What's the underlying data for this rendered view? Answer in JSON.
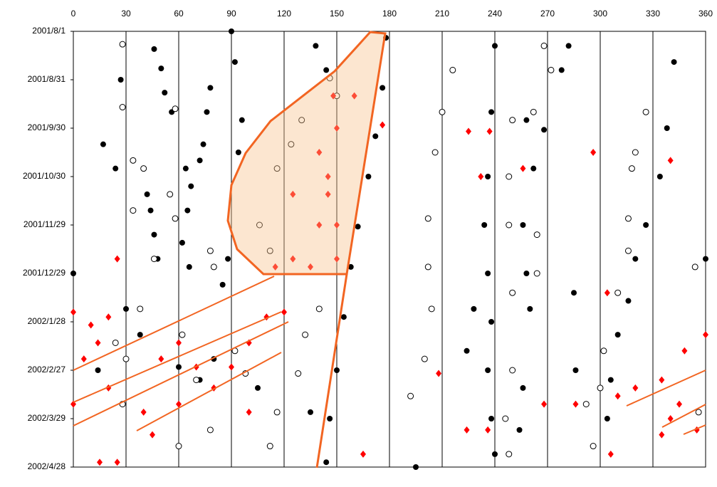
{
  "chart_data": {
    "type": "scatter",
    "xlim": [
      0,
      360
    ],
    "xticks": [
      0,
      30,
      60,
      90,
      120,
      150,
      180,
      210,
      240,
      270,
      300,
      330,
      360
    ],
    "ylim": [
      "2001/8/1",
      "2002/4/28"
    ],
    "yticks": [
      "2001/8/1",
      "2001/8/31",
      "2001/9/30",
      "2001/10/30",
      "2001/11/29",
      "2001/12/29",
      "2002/1/28",
      "2002/2/27",
      "2002/3/29",
      "2002/4/28"
    ],
    "grid": true,
    "series": [
      {
        "color": "#000000",
        "marker": "filled-circle",
        "x": [
          27,
          24,
          17,
          46,
          50,
          52,
          56,
          42,
          44,
          46,
          48,
          64,
          67,
          65,
          62,
          66,
          78,
          76,
          74,
          72,
          90,
          92,
          96,
          94,
          88,
          138,
          144,
          178,
          176,
          172,
          168,
          162,
          158,
          154,
          150,
          146,
          144,
          240,
          238,
          236,
          234,
          236,
          238,
          236,
          238,
          240,
          228,
          224,
          258,
          262,
          256,
          258,
          260,
          256,
          254,
          282,
          278,
          268,
          342,
          338,
          334,
          326,
          320,
          316,
          310,
          306,
          304,
          286,
          285,
          360,
          195,
          0,
          14,
          135,
          105,
          85,
          80,
          72,
          60,
          38,
          30
        ],
        "y": [
          "2001/8/31",
          "2001/10/25",
          "2001/10/10",
          "2001/8/12",
          "2001/8/24",
          "2001/9/8",
          "2001/9/20",
          "2001/11/10",
          "2001/11/20",
          "2001/12/5",
          "2001/12/20",
          "2001/10/25",
          "2001/11/5",
          "2001/11/20",
          "2001/12/10",
          "2001/12/25",
          "2001/9/5",
          "2001/9/20",
          "2001/10/10",
          "2001/10/20",
          "2001/8/1",
          "2001/8/20",
          "2001/9/25",
          "2001/10/15",
          "2001/12/20",
          "2001/8/10",
          "2001/8/25",
          "2001/8/5",
          "2001/9/5",
          "2001/10/5",
          "2001/10/30",
          "2001/11/30",
          "2001/12/25",
          "2002/1/25",
          "2002/2/27",
          "2002/3/29",
          "2002/4/25",
          "2001/8/10",
          "2001/9/20",
          "2001/10/30",
          "2001/11/29",
          "2001/12/29",
          "2002/1/28",
          "2002/2/27",
          "2002/3/29",
          "2002/4/20",
          "2002/1/20",
          "2002/2/15",
          "2001/9/25",
          "2001/10/25",
          "2001/11/29",
          "2001/12/29",
          "2002/1/20",
          "2002/3/10",
          "2002/4/5",
          "2001/8/10",
          "2001/8/25",
          "2001/10/1",
          "2001/8/20",
          "2001/9/30",
          "2001/10/30",
          "2001/11/29",
          "2001/12/20",
          "2002/1/15",
          "2002/2/5",
          "2002/3/5",
          "2002/3/29",
          "2002/2/27",
          "2002/1/10",
          "2001/12/20",
          "2002/4/28",
          "2001/12/29",
          "2002/2/27",
          "2002/3/25",
          "2002/3/10",
          "2002/1/5",
          "2002/2/20",
          "2002/3/5",
          "2002/2/25",
          "2002/2/5",
          "2002/1/20"
        ]
      },
      {
        "color": "#000000",
        "marker": "open-circle",
        "x": [
          28,
          28,
          34,
          34,
          40,
          58,
          55,
          58,
          46,
          78,
          80,
          24,
          30,
          28,
          38,
          62,
          70,
          60,
          78,
          92,
          98,
          116,
          112,
          132,
          128,
          106,
          112,
          116,
          124,
          130,
          146,
          150,
          140,
          210,
          206,
          202,
          202,
          204,
          200,
          192,
          216,
          250,
          248,
          248,
          250,
          250,
          246,
          248,
          262,
          268,
          272,
          264,
          264,
          296,
          292,
          300,
          302,
          310,
          316,
          318,
          320,
          326,
          316,
          354,
          356
        ],
        "y": [
          "2001/8/9",
          "2001/9/17",
          "2001/10/20",
          "2001/11/20",
          "2001/10/25",
          "2001/9/18",
          "2001/11/10",
          "2001/11/25",
          "2001/12/20",
          "2001/12/15",
          "2001/12/25",
          "2002/2/10",
          "2002/2/20",
          "2002/3/20",
          "2002/1/20",
          "2002/2/5",
          "2002/3/5",
          "2002/4/15",
          "2002/4/5",
          "2002/2/15",
          "2002/3/1",
          "2002/3/25",
          "2002/4/15",
          "2002/2/5",
          "2002/3/1",
          "2001/11/29",
          "2001/12/15",
          "2001/10/25",
          "2001/10/10",
          "2001/9/25",
          "2001/8/30",
          "2001/9/10",
          "2002/1/20",
          "2001/9/20",
          "2001/10/15",
          "2001/11/25",
          "2001/12/25",
          "2002/1/20",
          "2002/2/20",
          "2002/3/15",
          "2001/8/25",
          "2001/9/25",
          "2001/10/30",
          "2001/11/29",
          "2002/1/10",
          "2002/2/27",
          "2002/3/29",
          "2002/4/20",
          "2001/9/20",
          "2001/8/10",
          "2001/8/25",
          "2001/12/5",
          "2001/12/29",
          "2002/4/15",
          "2002/3/20",
          "2002/3/10",
          "2002/2/15",
          "2002/1/10",
          "2001/11/25",
          "2001/10/25",
          "2001/10/15",
          "2001/9/20",
          "2001/12/15",
          "2001/12/25",
          "2002/3/25"
        ]
      },
      {
        "color": "#ff0000",
        "marker": "diamond",
        "x": [
          0,
          10,
          25,
          20,
          6,
          14,
          0,
          20,
          40,
          45,
          15,
          25,
          50,
          60,
          70,
          80,
          90,
          100,
          110,
          120,
          60,
          100,
          115,
          125,
          135,
          140,
          145,
          150,
          150,
          125,
          140,
          150,
          148,
          160,
          145,
          176,
          165,
          225,
          237,
          232,
          256,
          208,
          224,
          236,
          268,
          286,
          296,
          304,
          306,
          310,
          320,
          340,
          335,
          345,
          340,
          348,
          360,
          335,
          355
        ],
        "y": [
          "2002/1/22",
          "2002/1/30",
          "2001/12/20",
          "2002/1/25",
          "2002/2/20",
          "2002/2/10",
          "2002/3/20",
          "2002/3/10",
          "2002/3/25",
          "2002/4/8",
          "2002/4/25",
          "2002/4/25",
          "2002/2/20",
          "2002/2/10",
          "2002/2/25",
          "2002/3/10",
          "2002/2/25",
          "2002/2/10",
          "2002/1/25",
          "2002/1/22",
          "2002/3/20",
          "2002/3/25",
          "2001/12/25",
          "2001/12/20",
          "2001/12/25",
          "2001/11/29",
          "2001/11/10",
          "2001/11/29",
          "2001/12/20",
          "2001/11/10",
          "2001/10/15",
          "2001/9/30",
          "2001/9/10",
          "2001/9/10",
          "2001/10/30",
          "2001/9/28",
          "2002/4/20",
          "2001/10/2",
          "2001/10/2",
          "2001/10/30",
          "2001/10/25",
          "2002/3/1",
          "2002/4/5",
          "2002/4/5",
          "2002/3/20",
          "2002/3/20",
          "2001/10/15",
          "2002/1/10",
          "2002/4/20",
          "2002/3/15",
          "2002/3/10",
          "2001/10/20",
          "2002/3/5",
          "2002/3/20",
          "2002/3/29",
          "2002/2/15",
          "2002/2/5",
          "2002/4/8",
          "2002/4/5"
        ]
      }
    ]
  }
}
